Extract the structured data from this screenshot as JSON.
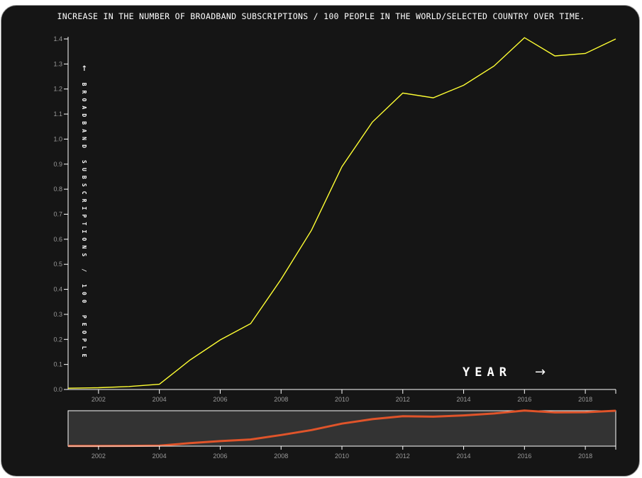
{
  "chart_data": {
    "type": "line",
    "title": "INCREASE IN THE NUMBER OF BROADBAND SUBSCRIPTIONS / 100 PEOPLE IN THE WORLD/SELECTED COUNTRY OVER TIME.",
    "xlabel": "YEAR",
    "ylabel": "BROADBAND SUBSCRIPTIONS / 100 PEOPLE",
    "x": [
      2001,
      2002,
      2003,
      2004,
      2005,
      2006,
      2007,
      2008,
      2009,
      2010,
      2011,
      2012,
      2013,
      2014,
      2015,
      2016,
      2017,
      2018,
      2019
    ],
    "series": [
      {
        "values": [
          0.005,
          0.007,
          0.012,
          0.021,
          0.117,
          0.198,
          0.263,
          0.44,
          0.636,
          0.89,
          1.068,
          1.184,
          1.165,
          1.215,
          1.292,
          1.405,
          1.332,
          1.342,
          1.4
        ]
      }
    ],
    "xlim": [
      2001,
      2019
    ],
    "ylim": [
      0,
      1.4
    ],
    "x_ticks": [
      "2002",
      "2004",
      "2006",
      "2008",
      "2010",
      "2012",
      "2014",
      "2016",
      "2018"
    ],
    "y_ticks": [
      "0.0",
      "0.1",
      "0.2",
      "0.3",
      "0.4",
      "0.5",
      "0.6",
      "0.7",
      "0.8",
      "0.9",
      "1.0",
      "1.1",
      "1.2",
      "1.3",
      "1.4"
    ],
    "grid": false,
    "brush_overview": true,
    "colors": {
      "background": "#151515",
      "main_line": "#ffff33",
      "overview_line": "#e0542a",
      "overview_bg": "#333333",
      "axis": "#ffffff",
      "tick_text": "#9a9a9a"
    }
  }
}
